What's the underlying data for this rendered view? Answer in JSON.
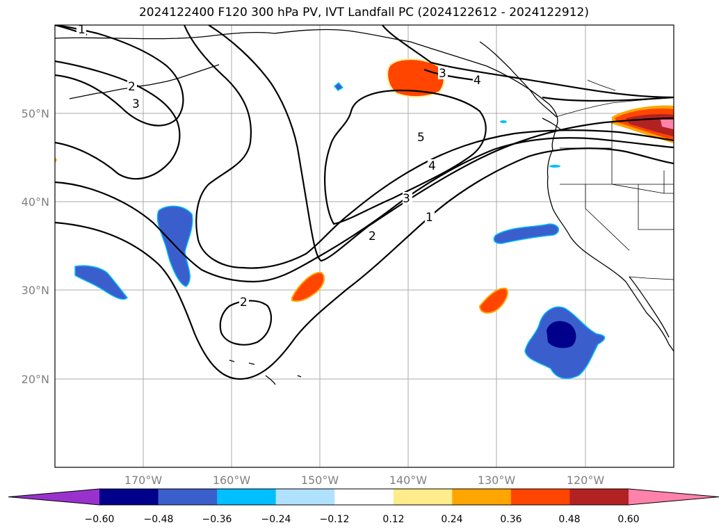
{
  "title": "2024122400 F120 300 hPa PV, IVT Landfall PC (2024122612 - 2024122912)",
  "map": {
    "lon_labels": [
      "170°W",
      "160°W",
      "150°W",
      "140°W",
      "130°W",
      "120°W"
    ],
    "lat_labels": [
      "50°N",
      "40°N",
      "30°N",
      "20°N"
    ],
    "contour_labels": [
      "1",
      "2",
      "3",
      "4",
      "5",
      "1",
      "2",
      "3",
      "4",
      "3",
      "2"
    ],
    "grid": true
  },
  "colorbar": {
    "ticks": [
      "−0.60",
      "−0.48",
      "−0.36",
      "−0.24",
      "−0.12",
      "0.12",
      "0.24",
      "0.36",
      "0.48",
      "0.60"
    ],
    "colors": [
      "#9932cc",
      "#00008b",
      "#3a5fcd",
      "#00bfff",
      "#b0e2ff",
      "#ffffff",
      "#ffec8b",
      "#ffa500",
      "#ff4500",
      "#b22222",
      "#ff82ab"
    ]
  },
  "colors": {
    "negative_fill": "#3a5fcd",
    "positive_fill": "#ff4500",
    "contour": "#000000",
    "grid": "#a9a9a9"
  }
}
